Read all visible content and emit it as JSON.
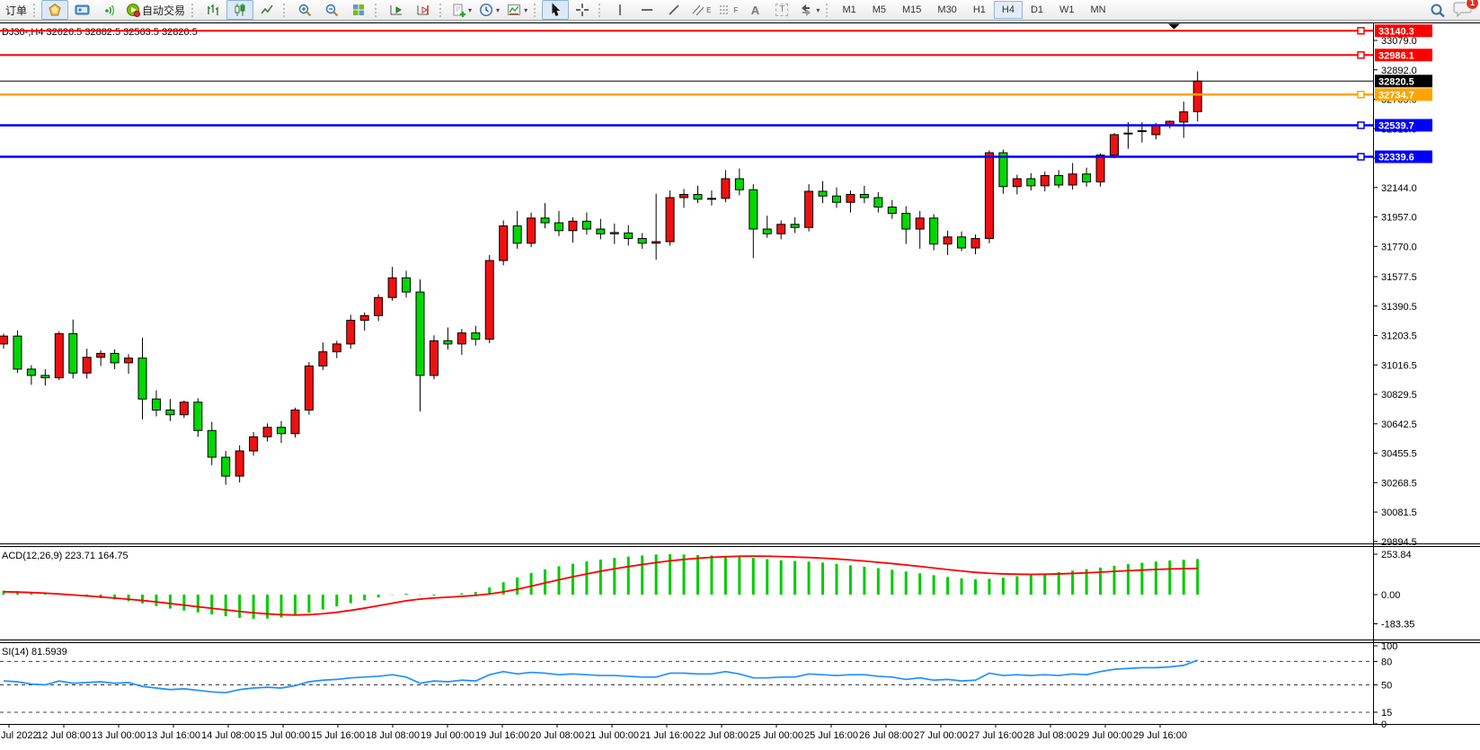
{
  "toolbar": {
    "orders_label": "订单",
    "autotrade_label": "自动交易",
    "timeframes": [
      "M1",
      "M5",
      "M15",
      "M30",
      "H1",
      "H4",
      "D1",
      "W1",
      "MN"
    ],
    "active_timeframe": "H4",
    "notification_badge": "1",
    "text_tool_label": "A",
    "label_tool_label": "T",
    "channel_tool_label": "E",
    "fibo_tool_label": "F"
  },
  "chart": {
    "title": "DJ30-,H4  32626.5 32882.5 32563.5 32820.5",
    "macd_label": "ACD(12,26,9) 223.71 164.75",
    "rsi_label": "SI(14) 81.5939",
    "current_price_label": "32820.5",
    "levels": [
      {
        "price": 33140.3,
        "label": "33140.3",
        "color": "#ff0000",
        "kind": "hline"
      },
      {
        "price": 32986.1,
        "label": "32986.1",
        "color": "#ff0000",
        "kind": "hline"
      },
      {
        "price": 32820.5,
        "label": "32820.5",
        "color": "#000000",
        "kind": "price"
      },
      {
        "price": 32734.7,
        "label": "32734.7",
        "color": "#ffa500",
        "kind": "hline"
      },
      {
        "price": 32539.7,
        "label": "32539.7",
        "color": "#0000ff",
        "kind": "hline"
      },
      {
        "price": 32339.6,
        "label": "32339.6",
        "color": "#0000ff",
        "kind": "hline"
      }
    ],
    "y_axis_ticks": [
      33079.0,
      32892.0,
      32705.0,
      32518.0,
      32331.0,
      32144.0,
      31957.0,
      31770.0,
      31577.5,
      31390.5,
      31203.5,
      31016.5,
      30829.5,
      30642.5,
      30455.5,
      30268.5,
      30081.5,
      29894.5
    ],
    "macd_ticks": [
      {
        "value": 253.84,
        "label": "253.84"
      },
      {
        "value": 0,
        "label": "0.00"
      },
      {
        "value": -183.35,
        "label": "-183.35"
      }
    ],
    "rsi_ticks": [
      {
        "value": 100,
        "label": "100"
      },
      {
        "value": 80,
        "label": "80"
      },
      {
        "value": 50,
        "label": "50"
      },
      {
        "value": 15,
        "label": "15"
      },
      {
        "value": 0,
        "label": "0"
      }
    ],
    "rsi_levels": [
      80,
      50,
      15
    ],
    "time_labels": [
      "Jul 2022",
      "12 Jul 08:00",
      "13 Jul 00:00",
      "13 Jul 16:00",
      "14 Jul 08:00",
      "15 Jul 00:00",
      "15 Jul 16:00",
      "18 Jul 08:00",
      "19 Jul 00:00",
      "19 Jul 16:00",
      "20 Jul 08:00",
      "21 Jul 00:00",
      "21 Jul 16:00",
      "22 Jul 08:00",
      "25 Jul 00:00",
      "25 Jul 16:00",
      "26 Jul 08:00",
      "27 Jul 00:00",
      "27 Jul 16:00",
      "28 Jul 08:00",
      "29 Jul 00:00",
      "29 Jul 16:00"
    ]
  },
  "chart_data": [
    {
      "type": "candlestick",
      "name": "DJ30- H4 price",
      "timeframe": "H4",
      "up_color": "#f01010",
      "down_color": "#00d800",
      "note": "red = bullish, green = bearish (CN convention)",
      "last_ohlc": {
        "open": 32626.5,
        "high": 32882.5,
        "low": 32563.5,
        "close": 32820.5
      },
      "y_range": [
        29888,
        33176
      ],
      "ohlc": [
        [
          31150,
          31215,
          31120,
          31200
        ],
        [
          31200,
          31235,
          30965,
          30990
        ],
        [
          30990,
          31015,
          30890,
          30950
        ],
        [
          30950,
          30990,
          30885,
          30935
        ],
        [
          30935,
          31230,
          30920,
          31215
        ],
        [
          31215,
          31305,
          30930,
          30965
        ],
        [
          30965,
          31120,
          30930,
          31065
        ],
        [
          31065,
          31110,
          31010,
          31090
        ],
        [
          31090,
          31115,
          30990,
          31030
        ],
        [
          31030,
          31085,
          30960,
          31060
        ],
        [
          31060,
          31190,
          30670,
          30800
        ],
        [
          30800,
          30855,
          30690,
          30730
        ],
        [
          30730,
          30800,
          30660,
          30700
        ],
        [
          30700,
          30790,
          30680,
          30780
        ],
        [
          30780,
          30805,
          30560,
          30600
        ],
        [
          30600,
          30655,
          30380,
          30430
        ],
        [
          30430,
          30470,
          30255,
          30310
        ],
        [
          30310,
          30505,
          30270,
          30470
        ],
        [
          30470,
          30590,
          30440,
          30560
        ],
        [
          30560,
          30645,
          30530,
          30620
        ],
        [
          30620,
          30660,
          30520,
          30580
        ],
        [
          30580,
          30745,
          30555,
          30730
        ],
        [
          30730,
          31035,
          30700,
          31010
        ],
        [
          31010,
          31160,
          30985,
          31100
        ],
        [
          31100,
          31170,
          31060,
          31150
        ],
        [
          31150,
          31335,
          31120,
          31300
        ],
        [
          31300,
          31350,
          31235,
          31330
        ],
        [
          31330,
          31465,
          31295,
          31445
        ],
        [
          31445,
          31640,
          31425,
          31570
        ],
        [
          31570,
          31615,
          31445,
          31480
        ],
        [
          31480,
          31560,
          30720,
          30950
        ],
        [
          30950,
          31205,
          30925,
          31170
        ],
        [
          31170,
          31255,
          31115,
          31150
        ],
        [
          31150,
          31245,
          31080,
          31220
        ],
        [
          31220,
          31265,
          31140,
          31180
        ],
        [
          31180,
          31715,
          31155,
          31680
        ],
        [
          31680,
          31935,
          31650,
          31900
        ],
        [
          31900,
          31995,
          31755,
          31790
        ],
        [
          31790,
          31985,
          31765,
          31950
        ],
        [
          31950,
          32045,
          31885,
          31920
        ],
        [
          31920,
          31995,
          31835,
          31870
        ],
        [
          31870,
          31955,
          31795,
          31930
        ],
        [
          31930,
          31985,
          31845,
          31880
        ],
        [
          31880,
          31945,
          31815,
          31850
        ],
        [
          31858,
          31915,
          31785,
          31850
        ],
        [
          31855,
          31905,
          31775,
          31820
        ],
        [
          31820,
          31855,
          31755,
          31790
        ],
        [
          31790,
          32105,
          31685,
          31800
        ],
        [
          31800,
          32125,
          31775,
          32080
        ],
        [
          32080,
          32135,
          32015,
          32100
        ],
        [
          32100,
          32155,
          32045,
          32070
        ],
        [
          32070,
          32125,
          32030,
          32075
        ],
        [
          32075,
          32255,
          32050,
          32200
        ],
        [
          32200,
          32265,
          32095,
          32130
        ],
        [
          32130,
          32165,
          31695,
          31880
        ],
        [
          31880,
          31965,
          31825,
          31850
        ],
        [
          31850,
          31935,
          31815,
          31910
        ],
        [
          31910,
          31955,
          31855,
          31890
        ],
        [
          31890,
          32165,
          31865,
          32120
        ],
        [
          32120,
          32185,
          32045,
          32090
        ],
        [
          32090,
          32145,
          32015,
          32050
        ],
        [
          32050,
          32125,
          31985,
          32100
        ],
        [
          32100,
          32155,
          32045,
          32080
        ],
        [
          32080,
          32115,
          31985,
          32020
        ],
        [
          32020,
          32065,
          31945,
          31980
        ],
        [
          31980,
          32025,
          31785,
          31880
        ],
        [
          31880,
          31995,
          31755,
          31950
        ],
        [
          31950,
          31975,
          31745,
          31785
        ],
        [
          31785,
          31870,
          31715,
          31830
        ],
        [
          31830,
          31865,
          31740,
          31760
        ],
        [
          31760,
          31845,
          31720,
          31820
        ],
        [
          31820,
          32380,
          31790,
          32365
        ],
        [
          32365,
          32385,
          32105,
          32150
        ],
        [
          32150,
          32225,
          32100,
          32200
        ],
        [
          32200,
          32235,
          32125,
          32155
        ],
        [
          32155,
          32245,
          32120,
          32220
        ],
        [
          32220,
          32255,
          32140,
          32160
        ],
        [
          32160,
          32300,
          32130,
          32230
        ],
        [
          32230,
          32270,
          32150,
          32180
        ],
        [
          32180,
          32360,
          32150,
          32350
        ],
        [
          32350,
          32490,
          32330,
          32480
        ],
        [
          32485,
          32560,
          32390,
          32490
        ],
        [
          32500,
          32560,
          32430,
          32505
        ],
        [
          32480,
          32555,
          32450,
          32540
        ],
        [
          32540,
          32570,
          32520,
          32565
        ],
        [
          32560,
          32690,
          32460,
          32625
        ],
        [
          32626.5,
          32882.5,
          32563.5,
          32820.5
        ]
      ]
    },
    {
      "type": "bar",
      "name": "MACD(12,26,9)",
      "current": {
        "macd": 223.71,
        "signal": 164.75
      },
      "range": [
        -183.35,
        253.84
      ],
      "hist_color": "#00cc00",
      "signal_color": "#ff0000",
      "histogram": [
        25,
        22,
        17,
        10,
        4,
        -5,
        -14,
        -22,
        -30,
        -40,
        -55,
        -72,
        -88,
        -100,
        -112,
        -124,
        -136,
        -146,
        -152,
        -150,
        -144,
        -132,
        -114,
        -94,
        -74,
        -54,
        -36,
        -18,
        -2,
        6,
        -2,
        -6,
        0,
        8,
        16,
        45,
        78,
        108,
        136,
        158,
        178,
        194,
        208,
        220,
        230,
        239,
        246,
        252,
        254,
        252,
        249,
        246,
        243,
        238,
        231,
        223,
        216,
        211,
        207,
        201,
        193,
        184,
        175,
        166,
        156,
        145,
        134,
        122,
        111,
        102,
        96,
        99,
        106,
        115,
        124,
        133,
        142,
        151,
        160,
        170,
        181,
        191,
        200,
        208,
        214,
        219,
        223.71
      ],
      "signal": [
        18,
        16,
        13,
        9,
        4,
        -2,
        -8,
        -15,
        -22,
        -29,
        -37,
        -46,
        -56,
        -66,
        -76,
        -86,
        -96,
        -106,
        -114,
        -121,
        -126,
        -128,
        -126,
        -120,
        -111,
        -99,
        -85,
        -70,
        -54,
        -39,
        -28,
        -21,
        -16,
        -11,
        -5,
        4,
        17,
        34,
        53,
        73,
        93,
        112,
        130,
        147,
        162,
        176,
        189,
        201,
        212,
        221,
        228,
        234,
        238,
        241,
        242,
        241,
        239,
        236,
        233,
        229,
        224,
        218,
        211,
        203,
        195,
        186,
        177,
        167,
        157,
        148,
        140,
        134,
        130,
        128,
        127,
        128,
        130,
        133,
        137,
        141,
        146,
        150,
        154,
        158,
        161,
        163,
        164.75
      ]
    },
    {
      "type": "line",
      "name": "RSI(14)",
      "current": 81.5939,
      "range": [
        0,
        100
      ],
      "color": "#1e90ff",
      "levels": [
        80,
        50,
        15
      ],
      "values": [
        55,
        54,
        51,
        50,
        55,
        52,
        53,
        54,
        52,
        53,
        48,
        46,
        44,
        45,
        43,
        41,
        40,
        44,
        46,
        47,
        46,
        49,
        54,
        56,
        57,
        59,
        60,
        61,
        63,
        60,
        52,
        55,
        54,
        56,
        55,
        63,
        67,
        64,
        66,
        65,
        63,
        64,
        63,
        62,
        62,
        61,
        60,
        60,
        65,
        65,
        64,
        64,
        67,
        64,
        59,
        59,
        60,
        60,
        64,
        63,
        62,
        63,
        63,
        61,
        60,
        57,
        59,
        56,
        57,
        55,
        56,
        65,
        62,
        63,
        62,
        63,
        62,
        64,
        63,
        67,
        70,
        71,
        72,
        72,
        73,
        75,
        81.59
      ]
    }
  ]
}
